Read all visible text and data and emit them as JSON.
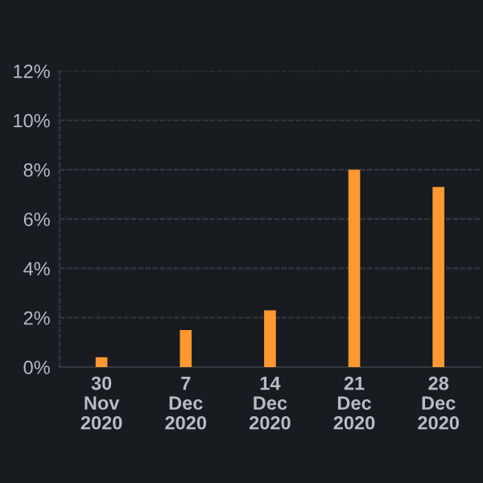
{
  "chart_data": {
    "type": "bar",
    "categories": [
      "30\nNov\n2020",
      "7\nDec\n2020",
      "14\nDec\n2020",
      "21\nDec\n2020",
      "28\nDec\n2020"
    ],
    "values": [
      0.4,
      1.5,
      2.3,
      8.0,
      7.3
    ],
    "color": "#ff9830",
    "ylim": [
      0,
      12
    ],
    "yticks": [
      {
        "value": 0,
        "label": "0%"
      },
      {
        "value": 2,
        "label": "2%"
      },
      {
        "value": 4,
        "label": "4%"
      },
      {
        "value": 6,
        "label": "6%"
      },
      {
        "value": 8,
        "label": "8%"
      },
      {
        "value": 10,
        "label": "10%"
      },
      {
        "value": 12,
        "label": "12%"
      }
    ],
    "grid": "y"
  }
}
